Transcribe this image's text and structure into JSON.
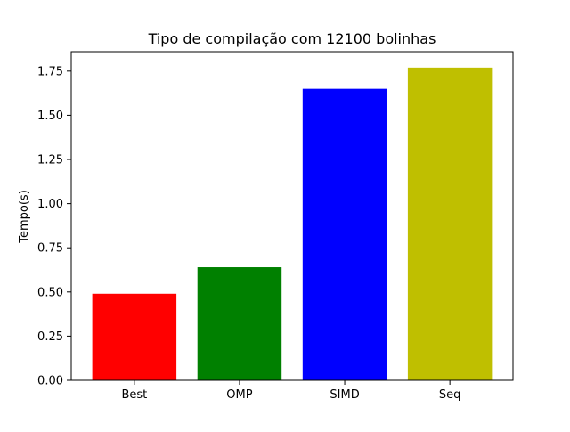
{
  "chart_data": {
    "type": "bar",
    "title": "Tipo de compilação com 12100 bolinhas",
    "xlabel": "",
    "ylabel": "Tempo(s)",
    "categories": [
      "Best",
      "OMP",
      "SIMD",
      "Seq"
    ],
    "values": [
      0.49,
      0.64,
      1.65,
      1.77
    ],
    "colors": [
      "#ff0000",
      "#008000",
      "#0000ff",
      "#bfbf00"
    ],
    "ylim": [
      0,
      1.86
    ],
    "yticks": [
      0.0,
      0.25,
      0.5,
      0.75,
      1.0,
      1.25,
      1.5,
      1.75
    ],
    "ytick_labels": [
      "0.00",
      "0.25",
      "0.50",
      "0.75",
      "1.00",
      "1.25",
      "1.50",
      "1.75"
    ],
    "grid": false,
    "legend": "none"
  }
}
